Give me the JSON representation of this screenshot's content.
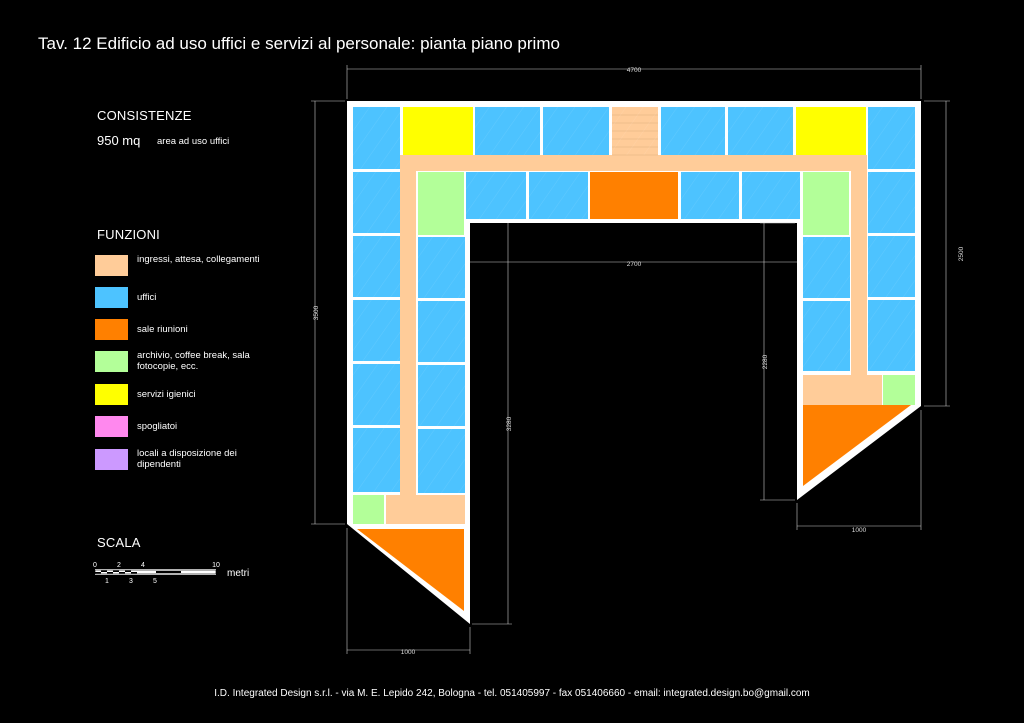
{
  "title": "Tav. 12 Edificio ad uso uffici e servizi al personale: pianta piano primo",
  "consistenze": {
    "heading": "CONSISTENZE",
    "value": "950 mq",
    "label": "area ad uso uffici"
  },
  "funzioni": {
    "heading": "FUNZIONI",
    "items": [
      {
        "label": "ingressi, attesa, collegamenti",
        "color": "#ffcc99"
      },
      {
        "label": "uffici",
        "color": "#4dc3ff"
      },
      {
        "label": "sale riunioni",
        "color": "#ff8000"
      },
      {
        "label": "archivio, coffee break, sala fotocopie, ecc.",
        "color": "#b3ff99"
      },
      {
        "label": "servizi igienici",
        "color": "#ffff00"
      },
      {
        "label": "spogliatoi",
        "color": "#ff88ee"
      },
      {
        "label": "locali a disposizione dei dipendenti",
        "color": "#cc99ff"
      }
    ]
  },
  "scala": {
    "heading": "SCALA",
    "ticks_top": [
      "0",
      "2",
      "4",
      "10"
    ],
    "ticks_bottom": [
      "1",
      "3",
      "5"
    ],
    "unit": "metri"
  },
  "dimensions": {
    "top_width": "4700",
    "right_height": "2500",
    "left_height": "3500",
    "inner_width": "2700",
    "inner_right_height": "2280",
    "inner_left_height": "3280",
    "left_bottom_width": "1000",
    "right_bottom_width": "1000"
  },
  "footer": "I.D. Integrated Design s.r.l. - via M. E. Lepido 242, Bologna - tel. 051405997 - fax 051406660 - email: integrated.design.bo@gmail.com"
}
